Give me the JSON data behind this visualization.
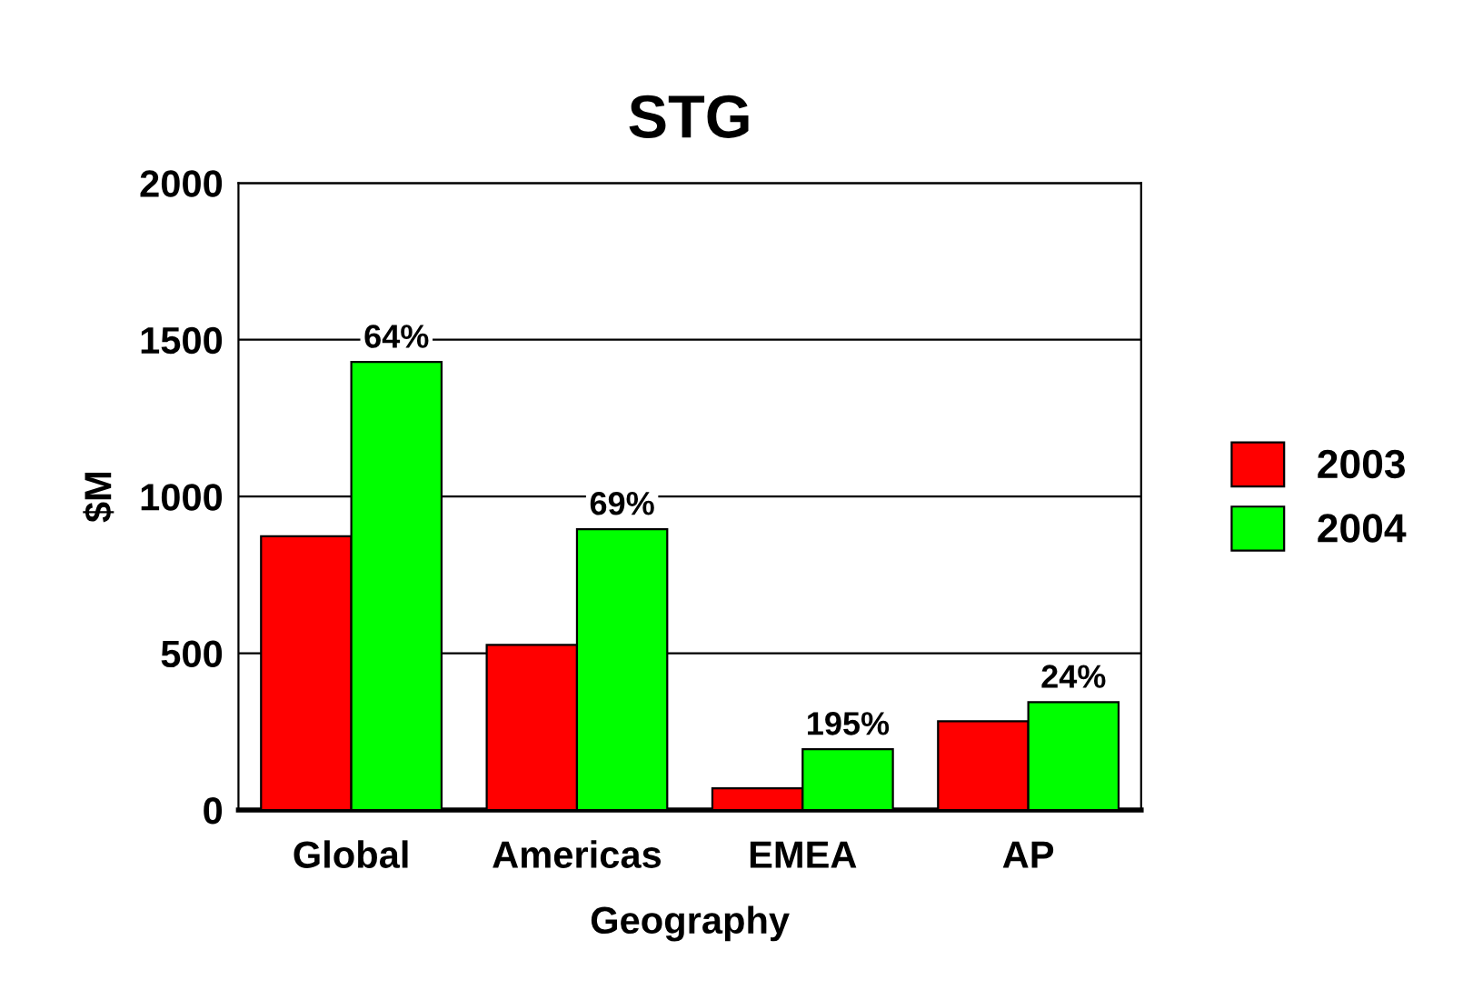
{
  "chart_data": {
    "type": "bar",
    "title": "STG",
    "xlabel": "Geography",
    "ylabel": "$M",
    "categories": [
      "Global",
      "Americas",
      "EMEA",
      "AP"
    ],
    "series": [
      {
        "name": "2003",
        "color": "#ff0000",
        "values": [
          873,
          527,
          69,
          283
        ]
      },
      {
        "name": "2004",
        "color": "#00ff00",
        "values": [
          1429,
          896,
          194,
          344
        ]
      }
    ],
    "annotations": [
      {
        "text": "64%",
        "x": "Global",
        "y": 1429
      },
      {
        "text": "69%",
        "x": "Americas",
        "y": 896
      },
      {
        "text": "195%",
        "x": "EMEA",
        "y": 194
      },
      {
        "text": "24%",
        "x": "AP",
        "y": 344
      }
    ],
    "ylim": [
      0,
      2000
    ],
    "yticks": [
      0,
      500,
      1000,
      1500,
      2000
    ],
    "grid": "y",
    "legend": "right"
  }
}
